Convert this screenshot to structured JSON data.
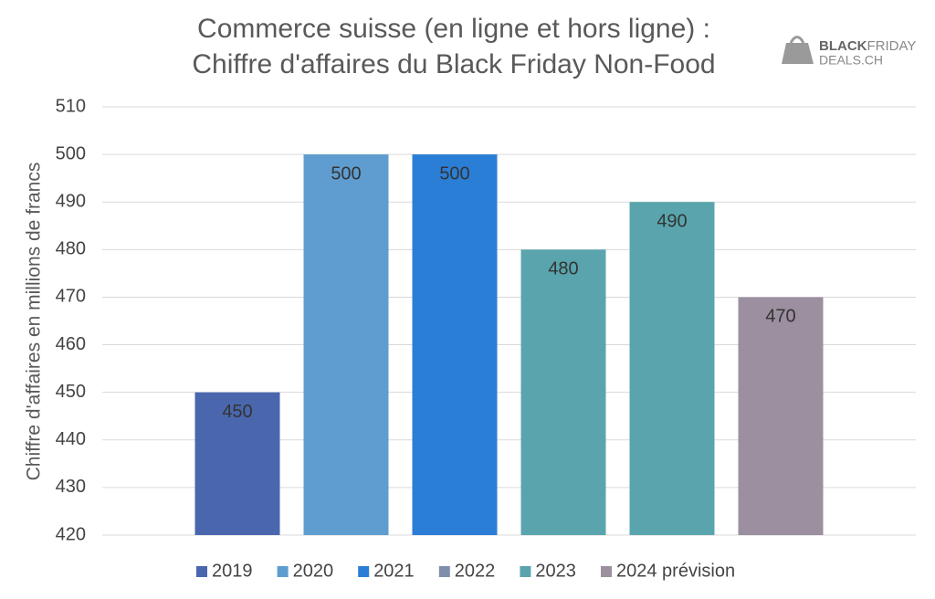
{
  "chart_data": {
    "type": "bar",
    "title": [
      "Commerce suisse (en ligne et hors ligne) :",
      "Chiffre d'affaires du Black Friday Non-Food"
    ],
    "ylabel": "Chiffre d'affaires en millions de francs",
    "categories": [
      null
    ],
    "series": [
      {
        "name": "2019",
        "color": "#4a67ae",
        "values": [
          450
        ]
      },
      {
        "name": "2020",
        "color": "#5f9dd0",
        "values": [
          500
        ]
      },
      {
        "name": "2021",
        "color": "#2b7ed6",
        "values": [
          500
        ]
      },
      {
        "name": "2022",
        "color": "#7f8fab",
        "bar_color": "#5aa5ad",
        "values": [
          480
        ]
      },
      {
        "name": "2023",
        "color": "#5aa5ad",
        "values": [
          490
        ]
      },
      {
        "name": "2024 prévision",
        "color": "#9c8f9f",
        "values": [
          470
        ]
      }
    ],
    "ylim": [
      420,
      510
    ],
    "yticks": [
      420,
      430,
      440,
      450,
      460,
      470,
      480,
      490,
      500,
      510
    ],
    "grid": true,
    "legend": "bottom",
    "logo": {
      "bold": "BLACK",
      "light": "FRIDAY",
      "sub": "DEALS.CH"
    }
  }
}
